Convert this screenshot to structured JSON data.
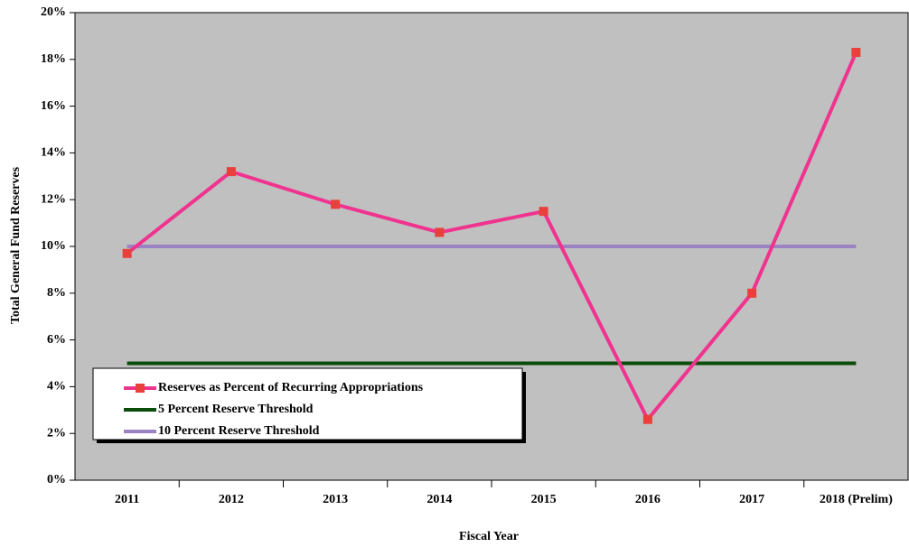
{
  "chart_data": {
    "type": "line",
    "x_label": "Fiscal Year",
    "y_label": "Total General Fund Reserves",
    "categories": [
      "2011",
      "2012",
      "2013",
      "2014",
      "2015",
      "2016",
      "2017",
      "2018 (Prelim)"
    ],
    "series": [
      {
        "name": "Reserves as Percent of Recurring Appropriations",
        "color": "#f0338f",
        "marker": "square",
        "marker_color": "#e8403a",
        "values": [
          9.7,
          13.2,
          11.8,
          10.6,
          11.5,
          2.6,
          8.0,
          18.3
        ]
      },
      {
        "name": "5 Percent Reserve Threshold",
        "color": "#0b4d0b",
        "values": [
          5,
          5,
          5,
          5,
          5,
          5,
          5,
          5
        ]
      },
      {
        "name": "10 Percent Reserve Threshold",
        "color": "#9b82c2",
        "values": [
          10,
          10,
          10,
          10,
          10,
          10,
          10,
          10
        ]
      }
    ],
    "ylim": [
      0,
      20
    ],
    "yticks": [
      {
        "value": 0,
        "label": "0%"
      },
      {
        "value": 2,
        "label": "2%"
      },
      {
        "value": 4,
        "label": "4%"
      },
      {
        "value": 6,
        "label": "6%"
      },
      {
        "value": 8,
        "label": "8%"
      },
      {
        "value": 10,
        "label": "10%"
      },
      {
        "value": 12,
        "label": "12%"
      },
      {
        "value": 14,
        "label": "14%"
      },
      {
        "value": 16,
        "label": "16%"
      },
      {
        "value": 18,
        "label": "18%"
      },
      {
        "value": 20,
        "label": "20%"
      }
    ],
    "plot_background": "#c0c0c0",
    "legend_position": "lower left"
  }
}
